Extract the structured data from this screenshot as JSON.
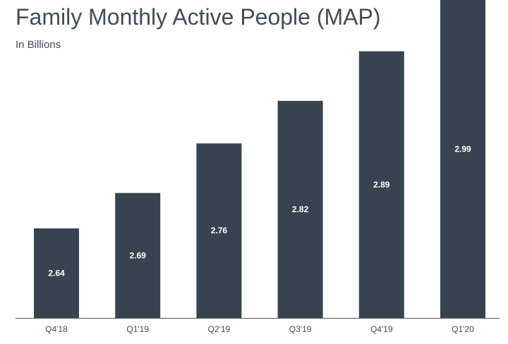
{
  "chart_data": {
    "type": "bar",
    "title": "Family Monthly Active People (MAP)",
    "subtitle": "In Billions",
    "categories": [
      "Q4'18",
      "Q1'19",
      "Q2'19",
      "Q3'19",
      "Q4'19",
      "Q1'20"
    ],
    "values": [
      2.64,
      2.69,
      2.76,
      2.82,
      2.89,
      2.99
    ],
    "data_labels": [
      "2.64",
      "2.69",
      "2.76",
      "2.82",
      "2.89",
      "2.99"
    ],
    "xlabel": "",
    "ylabel": "",
    "grid": false,
    "bar_color": "#37444f",
    "axis_color": "#555555",
    "text_color": "#3f4d5a"
  }
}
